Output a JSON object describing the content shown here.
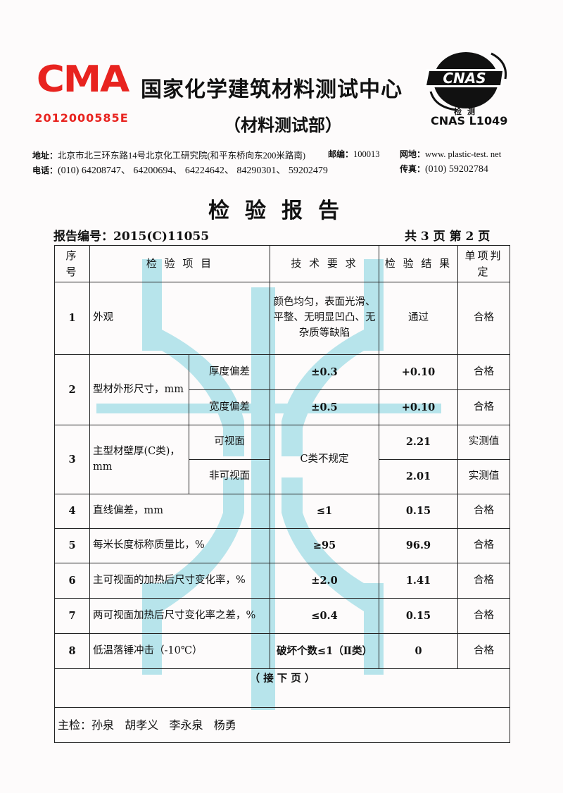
{
  "header": {
    "cma_logo_text": "CMA",
    "cma_number": "2012000585E",
    "org_title": "国家化学建筑材料测试中心",
    "org_subtitle": "（材料测试部）",
    "cnas_logo_text": "CNAS",
    "cnas_caption": "检测",
    "cnas_code": "CNAS  L1049",
    "brand_color": "#e8231f",
    "address_label": "地址：",
    "address": "北京市北三环东路14号北京化工研究院(和平东桥向东200米路南)",
    "postcode_label": "邮编：",
    "postcode": "100013",
    "website_label": "网地：",
    "website": "www. plastic-test. net",
    "phone_label": "电话：",
    "phone": "(010)  64208747、  64200694、  64224642、  84290301、  59202479",
    "fax_label": "传真：",
    "fax": "(010) 59202784"
  },
  "report": {
    "title": "检验报告",
    "number_label": "报告编号：",
    "number": "2015(C)11055",
    "page_info": "共 3 页 第 2 页"
  },
  "table": {
    "headers": [
      "序 号",
      "检 验 项 目",
      "技 术 要 求",
      "检 验 结 果",
      "单项判定"
    ],
    "rows": [
      {
        "no": "1",
        "item": "外观",
        "req": "颜色均匀，表面光滑、平整、无明显凹凸、无杂质等缺陷",
        "result": "通过",
        "verdict": "合格"
      },
      {
        "no": "2",
        "item": "型材外形尺寸，mm",
        "subs": [
          {
            "sub": "厚度偏差",
            "req": "±0.3",
            "result": "+0.10",
            "verdict": "合格"
          },
          {
            "sub": "宽度偏差",
            "req": "±0.5",
            "result": "+0.10",
            "verdict": "合格"
          }
        ]
      },
      {
        "no": "3",
        "item": "主型材壁厚(C类)，mm",
        "req": "C类不规定",
        "subs": [
          {
            "sub": "可视面",
            "result": "2.21",
            "verdict": "实测值"
          },
          {
            "sub": "非可视面",
            "result": "2.01",
            "verdict": "实测值"
          }
        ]
      },
      {
        "no": "4",
        "item": "直线偏差，mm",
        "req": "≤1",
        "result": "0.15",
        "verdict": "合格"
      },
      {
        "no": "5",
        "item": "每米长度标称质量比，%",
        "req": "≥95",
        "result": "96.9",
        "verdict": "合格"
      },
      {
        "no": "6",
        "item": "主可视面的加热后尺寸变化率，%",
        "req": "±2.0",
        "result": "1.41",
        "verdict": "合格"
      },
      {
        "no": "7",
        "item": "两可视面加热后尺寸变化率之差，%",
        "req": "≤0.4",
        "result": "0.15",
        "verdict": "合格"
      },
      {
        "no": "8",
        "item": "低温落锤冲击（-10℃）",
        "req": "破坏个数≤1（Ⅱ类）",
        "result": "0",
        "verdict": "合格"
      }
    ],
    "continued": "（ 接  下  页 ）",
    "inspectors_label": "主检：",
    "inspectors": "孙泉   胡孝义   李永泉   杨勇"
  },
  "watermark_color": "#7fd3df"
}
